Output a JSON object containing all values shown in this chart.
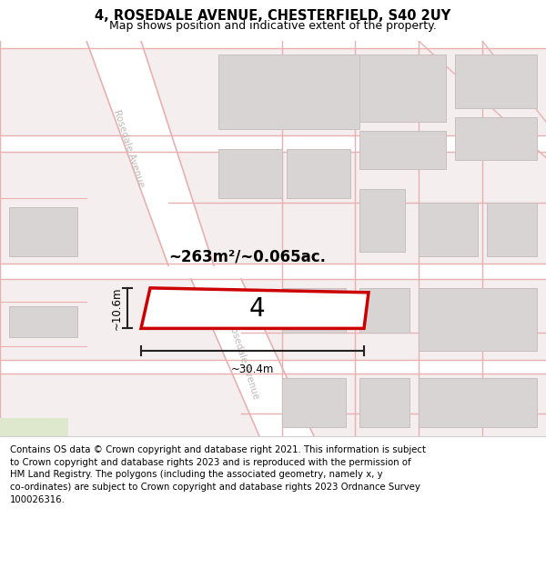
{
  "title": "4, ROSEDALE AVENUE, CHESTERFIELD, S40 2UY",
  "subtitle": "Map shows position and indicative extent of the property.",
  "footer": "Contains OS data © Crown copyright and database right 2021. This information is subject\nto Crown copyright and database rights 2023 and is reproduced with the permission of\nHM Land Registry. The polygons (including the associated geometry, namely x, y\nco-ordinates) are subject to Crown copyright and database rights 2023 Ordnance Survey\n100026316.",
  "area_label": "~263m²/~0.065ac.",
  "plot_number": "4",
  "width_label": "~30.4m",
  "height_label": "~10.6m",
  "map_bg": "#f5eeee",
  "road_fill": "#ffffff",
  "road_edge": "#e8b0b0",
  "plot_color": "#cc0000",
  "building_fill": "#d8d4d4",
  "building_edge": "#c8c0c0",
  "street_label_color": "#c0b8b8",
  "dim_color": "#222222",
  "green_fill": "#dde8cc",
  "title_fontsize": 10.5,
  "subtitle_fontsize": 9,
  "footer_fontsize": 7.3
}
